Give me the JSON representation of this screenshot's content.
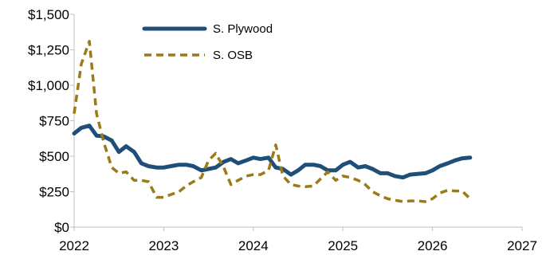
{
  "chart_data": {
    "type": "line",
    "x_unit": "year",
    "xlim": [
      2022,
      2027
    ],
    "ylim": [
      0,
      1500
    ],
    "x_ticks": [
      "2022",
      "2023",
      "2024",
      "2025",
      "2026",
      "2027"
    ],
    "y_ticks": [
      "$0",
      "$250",
      "$500",
      "$750",
      "$1,000",
      "$1,250",
      "$1,500"
    ],
    "x_tick_values": [
      2022,
      2023,
      2024,
      2025,
      2026,
      2027
    ],
    "y_tick_values": [
      0,
      250,
      500,
      750,
      1000,
      1250,
      1500
    ],
    "grid": false,
    "legend_position": "top-left",
    "series": [
      {
        "name": "S. Plywood",
        "color": "#1f4e79",
        "style": "solid",
        "x": [
          2022.0,
          2022.08,
          2022.17,
          2022.25,
          2022.33,
          2022.42,
          2022.5,
          2022.58,
          2022.67,
          2022.75,
          2022.83,
          2022.92,
          2023.0,
          2023.08,
          2023.17,
          2023.25,
          2023.33,
          2023.42,
          2023.5,
          2023.58,
          2023.67,
          2023.75,
          2023.83,
          2023.92,
          2024.0,
          2024.08,
          2024.17,
          2024.25,
          2024.33,
          2024.42,
          2024.5,
          2024.58,
          2024.67,
          2024.75,
          2024.83,
          2024.92,
          2025.0,
          2025.08,
          2025.17,
          2025.25,
          2025.33,
          2025.42,
          2025.5,
          2025.58,
          2025.67,
          2025.75,
          2025.83,
          2025.92,
          2026.0,
          2026.08,
          2026.17,
          2026.25,
          2026.33,
          2026.42
        ],
        "y": [
          660,
          700,
          715,
          645,
          640,
          610,
          530,
          570,
          530,
          450,
          430,
          420,
          420,
          430,
          440,
          440,
          430,
          400,
          410,
          420,
          460,
          480,
          450,
          470,
          490,
          480,
          490,
          420,
          410,
          370,
          400,
          440,
          440,
          430,
          400,
          400,
          440,
          460,
          420,
          430,
          410,
          380,
          380,
          360,
          350,
          370,
          375,
          380,
          400,
          430,
          450,
          470,
          485,
          490
        ]
      },
      {
        "name": "S. OSB",
        "color": "#9b7a1a",
        "style": "dashed",
        "x": [
          2022.0,
          2022.08,
          2022.17,
          2022.25,
          2022.33,
          2022.42,
          2022.5,
          2022.58,
          2022.67,
          2022.75,
          2022.83,
          2022.92,
          2023.0,
          2023.08,
          2023.17,
          2023.25,
          2023.33,
          2023.42,
          2023.5,
          2023.58,
          2023.67,
          2023.75,
          2023.83,
          2023.92,
          2024.0,
          2024.08,
          2024.17,
          2024.25,
          2024.33,
          2024.42,
          2024.5,
          2024.58,
          2024.67,
          2024.75,
          2024.83,
          2024.92,
          2025.0,
          2025.08,
          2025.17,
          2025.25,
          2025.33,
          2025.42,
          2025.5,
          2025.58,
          2025.67,
          2025.75,
          2025.83,
          2025.92,
          2026.0,
          2026.08,
          2026.17,
          2026.25,
          2026.33,
          2026.42
        ],
        "y": [
          800,
          1150,
          1310,
          800,
          600,
          420,
          380,
          390,
          330,
          330,
          320,
          210,
          210,
          230,
          250,
          290,
          320,
          350,
          470,
          520,
          420,
          300,
          330,
          360,
          370,
          370,
          400,
          580,
          360,
          300,
          290,
          285,
          290,
          340,
          390,
          330,
          360,
          350,
          330,
          300,
          250,
          220,
          200,
          190,
          180,
          185,
          185,
          180,
          200,
          240,
          260,
          255,
          255,
          200
        ]
      }
    ]
  }
}
